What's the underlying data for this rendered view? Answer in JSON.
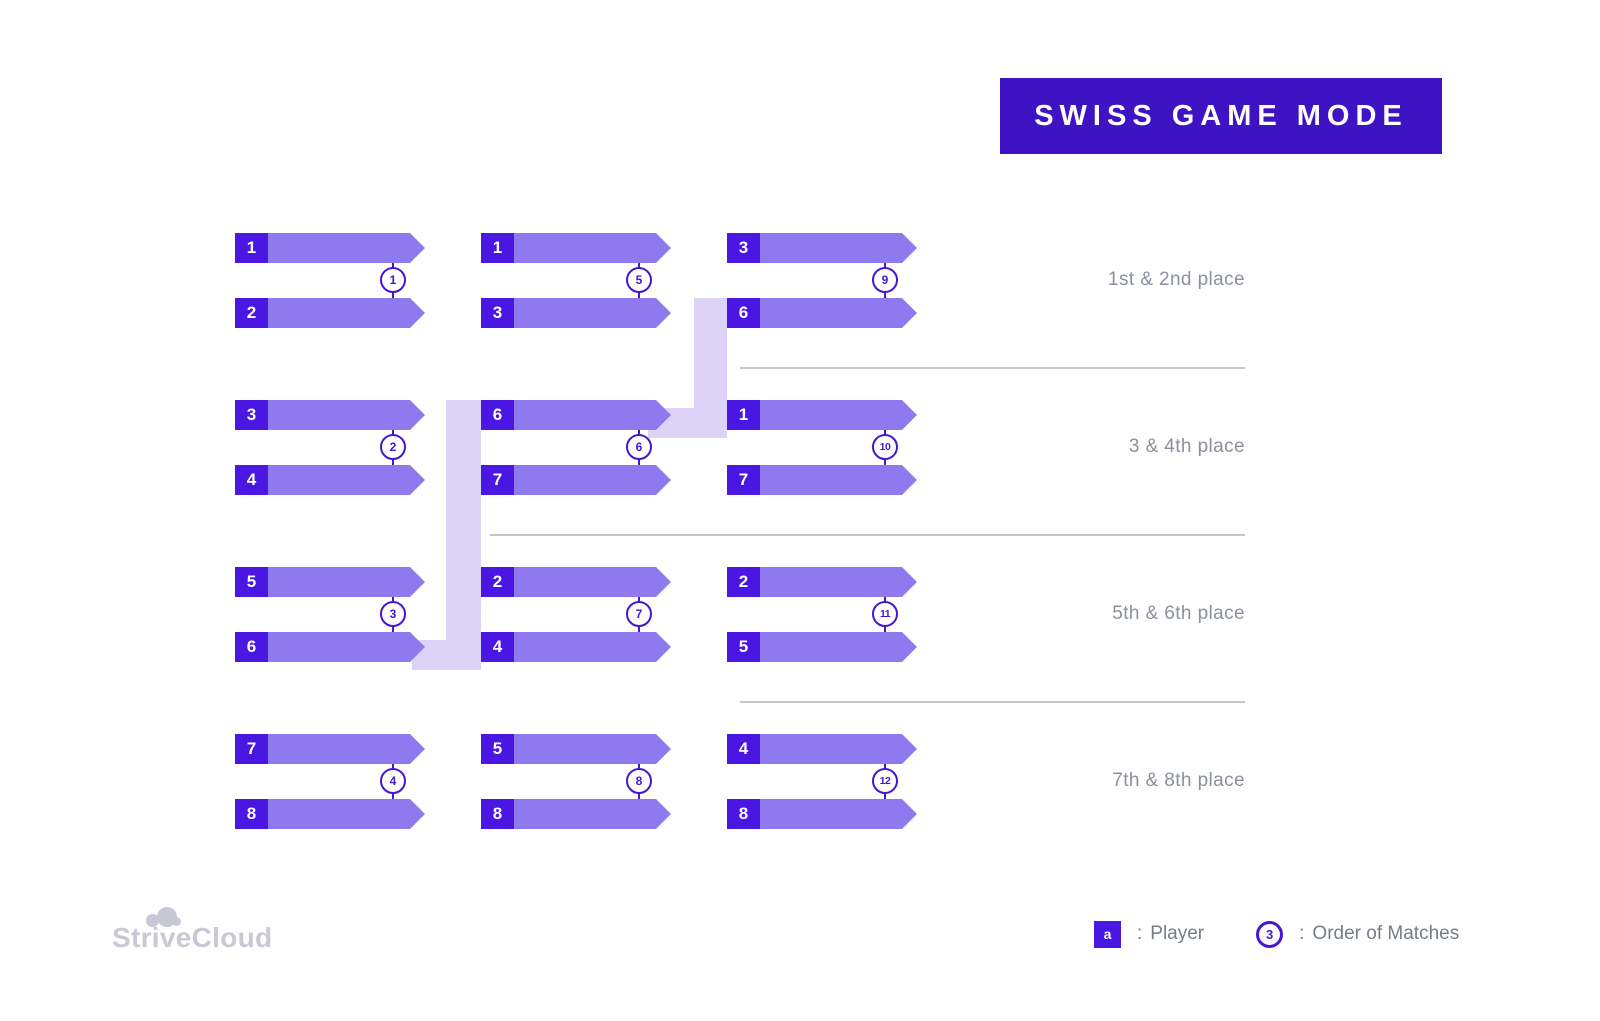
{
  "title": "SWISS GAME MODE",
  "groups": [
    {
      "label": "1st & 2nd place"
    },
    {
      "label": "3 & 4th place"
    },
    {
      "label": "5th & 6th place"
    },
    {
      "label": "7th & 8th place"
    }
  ],
  "matches": [
    {
      "col": 0,
      "row": 0,
      "top_player": "1",
      "bottom_player": "2",
      "order": "1"
    },
    {
      "col": 0,
      "row": 1,
      "top_player": "3",
      "bottom_player": "4",
      "order": "2"
    },
    {
      "col": 0,
      "row": 2,
      "top_player": "5",
      "bottom_player": "6",
      "order": "3"
    },
    {
      "col": 0,
      "row": 3,
      "top_player": "7",
      "bottom_player": "8",
      "order": "4"
    },
    {
      "col": 1,
      "row": 0,
      "top_player": "1",
      "bottom_player": "3",
      "order": "5"
    },
    {
      "col": 1,
      "row": 1,
      "top_player": "6",
      "bottom_player": "7",
      "order": "6"
    },
    {
      "col": 1,
      "row": 2,
      "top_player": "2",
      "bottom_player": "4",
      "order": "7"
    },
    {
      "col": 1,
      "row": 3,
      "top_player": "5",
      "bottom_player": "8",
      "order": "8"
    },
    {
      "col": 2,
      "row": 0,
      "top_player": "3",
      "bottom_player": "6",
      "order": "9"
    },
    {
      "col": 2,
      "row": 1,
      "top_player": "1",
      "bottom_player": "7",
      "order": "10"
    },
    {
      "col": 2,
      "row": 2,
      "top_player": "2",
      "bottom_player": "5",
      "order": "11"
    },
    {
      "col": 2,
      "row": 3,
      "top_player": "4",
      "bottom_player": "8",
      "order": "12"
    }
  ],
  "legend": {
    "player_symbol": "a",
    "separator": ":",
    "player_label": "Player",
    "order_symbol": "3",
    "order_label": "Order of Matches"
  },
  "logo": {
    "text": "StriveCloud"
  },
  "colors": {
    "accent": "#4a17e2",
    "banner": "#3d13c4",
    "bar": "#8f79ee",
    "connector": "#ddd3f8",
    "circle": "#4617d1",
    "muted_text": "#8b919b",
    "divider": "#c6c6c6",
    "logo": "#c8c9d4"
  }
}
